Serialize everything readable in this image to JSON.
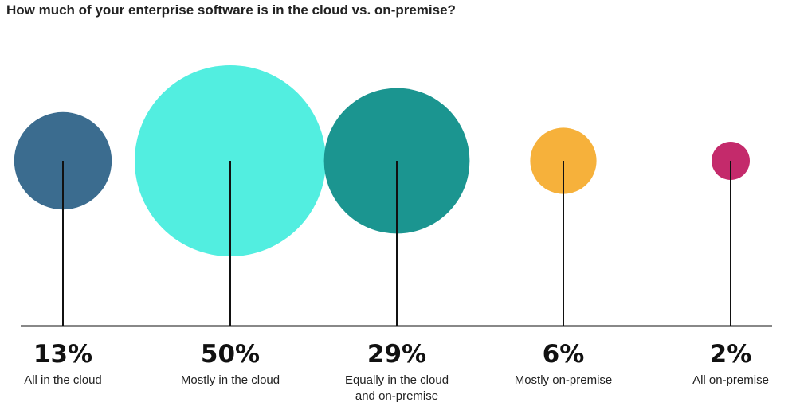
{
  "chart_data": {
    "type": "bubble",
    "title": "How much of your enterprise software is in the cloud vs. on-premise?",
    "categories": [
      "All in the cloud",
      "Mostly in the cloud",
      "Equally in the cloud and on-premise",
      "Mostly on-premise",
      "All on-premise"
    ],
    "category_label_lines": [
      [
        "All in the cloud"
      ],
      [
        "Mostly in the cloud"
      ],
      [
        "Equally in the cloud",
        "and on-premise"
      ],
      [
        "Mostly on-premise"
      ],
      [
        "All on-premise"
      ]
    ],
    "values": [
      13,
      50,
      29,
      6,
      2
    ],
    "value_labels": [
      "13%",
      "50%",
      "29%",
      "6%",
      "2%"
    ],
    "unit": "%",
    "colors": [
      "#3b6c8f",
      "#52eee0",
      "#1b9590",
      "#f6b13b",
      "#c42a6b"
    ],
    "stem_color": "#111111",
    "xlabel": "",
    "ylabel": ""
  }
}
